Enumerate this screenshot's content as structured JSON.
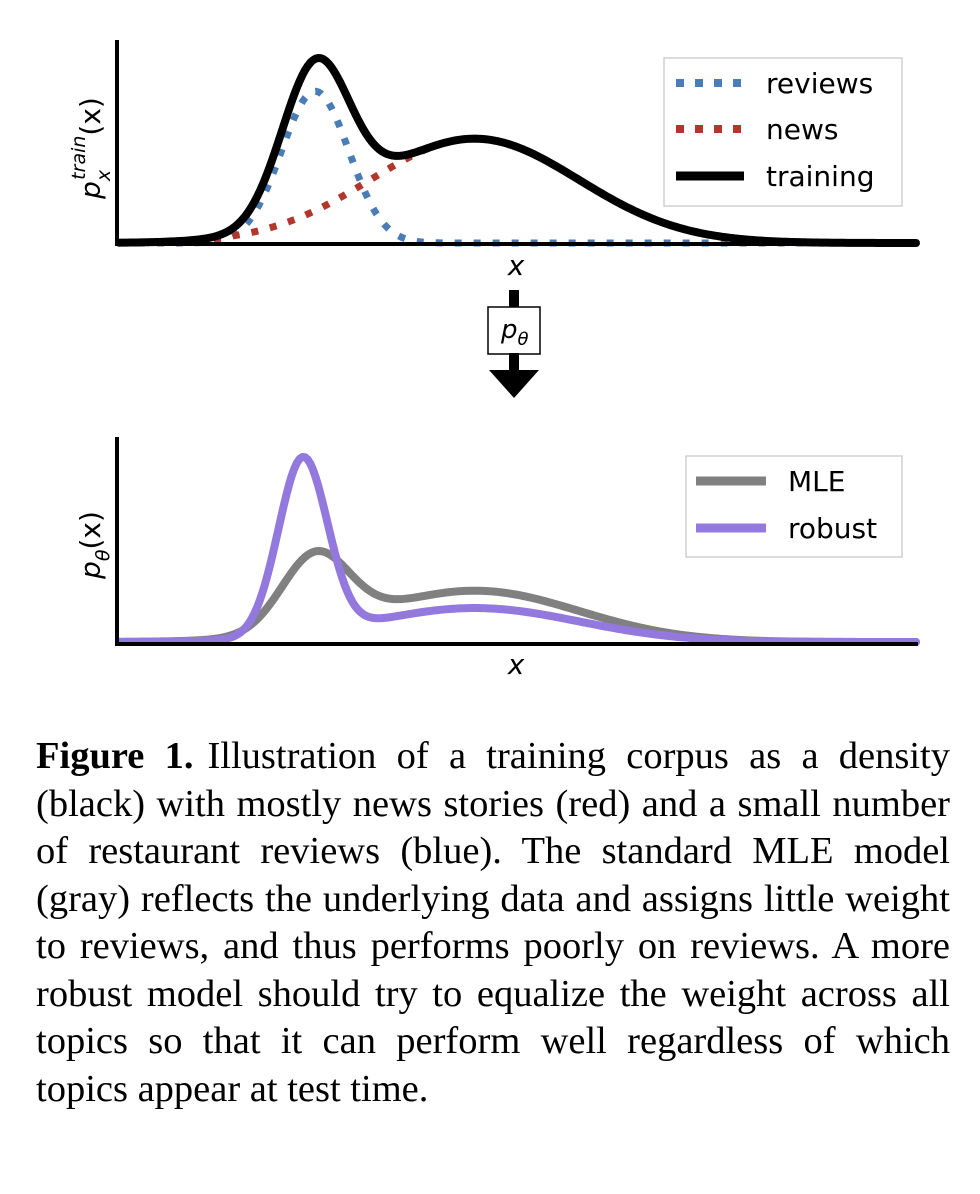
{
  "chart_data": [
    {
      "type": "line",
      "ylabel": "p_x^train(x)",
      "ylabel_base": "p",
      "ylabel_sup": "train",
      "ylabel_sub": "x",
      "ylabel_arg": "(x)",
      "xlabel": "x",
      "xlim": [
        -3,
        10
      ],
      "ylim": [
        0,
        1.0
      ],
      "legend": "top-right",
      "series": [
        {
          "name": "reviews",
          "style": "dotted",
          "color": "#4a7db5",
          "components": [
            {
              "mu": 0.2,
              "sigma": 0.55,
              "weight": 0.32
            }
          ]
        },
        {
          "name": "news",
          "style": "dotted",
          "color": "#b2362b",
          "components": [
            {
              "mu": 2.8,
              "sigma": 1.7,
              "weight": 0.68
            }
          ]
        },
        {
          "name": "training",
          "style": "solid",
          "color": "#000000",
          "components": [
            {
              "mu": 0.2,
              "sigma": 0.55,
              "weight": 0.32
            },
            {
              "mu": 2.8,
              "sigma": 1.7,
              "weight": 0.68
            }
          ]
        }
      ]
    },
    {
      "type": "line",
      "ylabel": "p_θ(x)",
      "ylabel_base": "p",
      "ylabel_sub": "θ",
      "ylabel_arg": "(x)",
      "xlabel": "x",
      "xlim": [
        -3,
        10
      ],
      "ylim": [
        0,
        1.0
      ],
      "legend": "top-right",
      "series": [
        {
          "name": "MLE",
          "style": "solid",
          "color": "#808080",
          "components": [
            {
              "mu": 0.2,
              "sigma": 0.55,
              "weight": 0.32
            },
            {
              "mu": 2.8,
              "sigma": 1.7,
              "weight": 0.68
            }
          ]
        },
        {
          "name": "robust",
          "style": "solid",
          "color": "#9378de",
          "components": [
            {
              "mu": 0.0,
              "sigma": 0.4,
              "weight": 0.55
            },
            {
              "mu": 2.8,
              "sigma": 1.7,
              "weight": 0.45
            }
          ]
        }
      ]
    }
  ],
  "arrow_box": {
    "label_base": "p",
    "label_sub": "θ"
  },
  "caption": {
    "label": "Figure 1.",
    "text": "Illustration of a training corpus as a density (black) with mostly news stories (red) and a small number of restaurant reviews (blue). The standard MLE model (gray) reflects the underlying data and assigns little weight to reviews, and thus performs poorly on reviews. A more robust model should try to equalize the weight across all topics so that it can perform well regardless of which topics appear at test time."
  }
}
